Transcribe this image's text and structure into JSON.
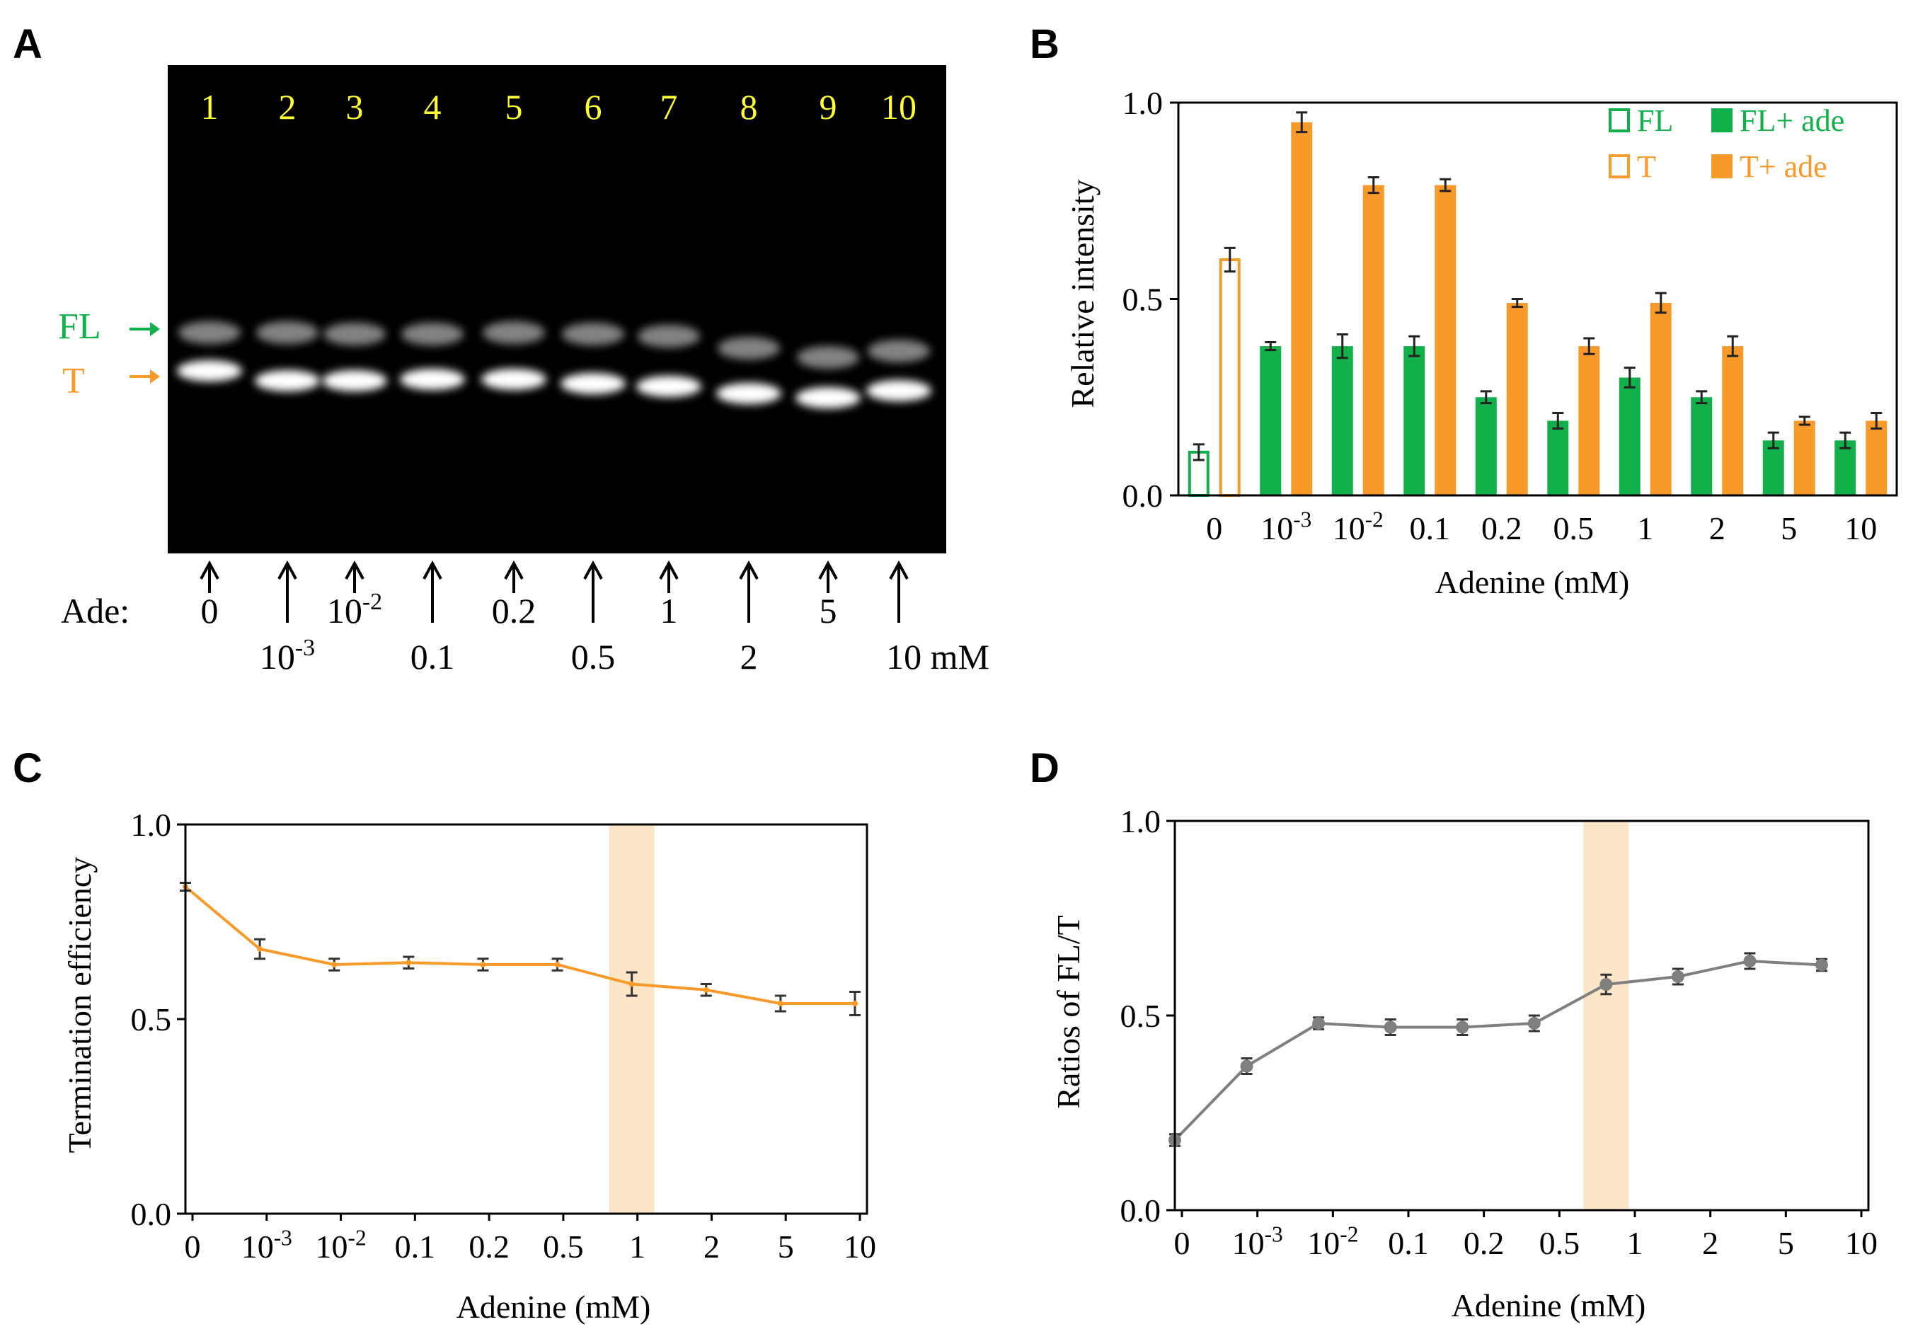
{
  "panel_labels": {
    "a": "A",
    "b": "B",
    "c": "C",
    "d": "D"
  },
  "colors": {
    "green": "#12b04a",
    "orange": "#f89a2a",
    "gray": "#7f7f7f",
    "highlight": "#fde5c8",
    "lane_number": "#ffff33",
    "gel_bg": "#000000"
  },
  "gel": {
    "lane_numbers": [
      "1",
      "2",
      "3",
      "4",
      "5",
      "6",
      "7",
      "8",
      "9",
      "10"
    ],
    "fl_label": "FL",
    "t_label": "T",
    "ade_prefix": "Ade:",
    "lanes": [
      {
        "base": "0",
        "exp": ""
      },
      {
        "base": "10",
        "exp": "-3"
      },
      {
        "base": "10",
        "exp": "-2"
      },
      {
        "base": "0.1",
        "exp": ""
      },
      {
        "base": "0.2",
        "exp": ""
      },
      {
        "base": "0.5",
        "exp": ""
      },
      {
        "base": "1",
        "exp": ""
      },
      {
        "base": "2",
        "exp": ""
      },
      {
        "base": "5",
        "exp": ""
      },
      {
        "base": "10 mM",
        "exp": ""
      }
    ]
  },
  "chart_data": [
    {
      "id": "B",
      "type": "bar",
      "title": "",
      "xlabel": "Adenine (mM)",
      "ylabel": "Relative intensity",
      "ylim": [
        0,
        1.0
      ],
      "yticks": [
        "0.0",
        "0.5",
        "1.0"
      ],
      "categories": [
        {
          "base": "0",
          "exp": ""
        },
        {
          "base": "10",
          "exp": "-3"
        },
        {
          "base": "10",
          "exp": "-2"
        },
        {
          "base": "0.1",
          "exp": ""
        },
        {
          "base": "0.2",
          "exp": ""
        },
        {
          "base": "0.5",
          "exp": ""
        },
        {
          "base": "1",
          "exp": ""
        },
        {
          "base": "2",
          "exp": ""
        },
        {
          "base": "5",
          "exp": ""
        },
        {
          "base": "10",
          "exp": ""
        }
      ],
      "legend": [
        "FL",
        "FL+ ade",
        "T",
        "T+ ade"
      ],
      "series": [
        {
          "name": "FL",
          "values": [
            0.11,
            0.38,
            0.38,
            0.38,
            0.25,
            0.19,
            0.3,
            0.25,
            0.14,
            0.14
          ],
          "errors": [
            0.02,
            0.01,
            0.03,
            0.025,
            0.015,
            0.02,
            0.025,
            0.015,
            0.02,
            0.02
          ]
        },
        {
          "name": "T",
          "values": [
            0.6,
            0.95,
            0.79,
            0.79,
            0.49,
            0.38,
            0.49,
            0.38,
            0.19,
            0.19
          ],
          "errors": [
            0.03,
            0.025,
            0.02,
            0.015,
            0.01,
            0.02,
            0.025,
            0.025,
            0.01,
            0.02
          ]
        }
      ]
    },
    {
      "id": "C",
      "type": "line",
      "title": "",
      "xlabel": "Adenine (mM)",
      "ylabel": "Termination efficiency",
      "ylim": [
        0,
        1.0
      ],
      "yticks": [
        "0.0",
        "0.5",
        "1.0"
      ],
      "categories": [
        {
          "base": "0",
          "exp": ""
        },
        {
          "base": "10",
          "exp": "-3"
        },
        {
          "base": "10",
          "exp": "-2"
        },
        {
          "base": "0.1",
          "exp": ""
        },
        {
          "base": "0.2",
          "exp": ""
        },
        {
          "base": "0.5",
          "exp": ""
        },
        {
          "base": "1",
          "exp": ""
        },
        {
          "base": "2",
          "exp": ""
        },
        {
          "base": "5",
          "exp": ""
        },
        {
          "base": "10",
          "exp": ""
        }
      ],
      "highlight_category": 6,
      "series": [
        {
          "name": "Termination efficiency",
          "values": [
            0.84,
            0.68,
            0.64,
            0.645,
            0.64,
            0.64,
            0.59,
            0.575,
            0.54,
            0.54
          ],
          "errors": [
            0.01,
            0.025,
            0.015,
            0.015,
            0.015,
            0.015,
            0.03,
            0.015,
            0.02,
            0.03
          ]
        }
      ]
    },
    {
      "id": "D",
      "type": "line",
      "title": "",
      "xlabel": "Adenine (mM)",
      "ylabel": "Ratios of FL/T",
      "ylim": [
        0,
        1.0
      ],
      "yticks": [
        "0.0",
        "0.5",
        "1.0"
      ],
      "categories": [
        {
          "base": "0",
          "exp": ""
        },
        {
          "base": "10",
          "exp": "-3"
        },
        {
          "base": "10",
          "exp": "-2"
        },
        {
          "base": "0.1",
          "exp": ""
        },
        {
          "base": "0.2",
          "exp": ""
        },
        {
          "base": "0.5",
          "exp": ""
        },
        {
          "base": "1",
          "exp": ""
        },
        {
          "base": "2",
          "exp": ""
        },
        {
          "base": "5",
          "exp": ""
        },
        {
          "base": "10",
          "exp": ""
        }
      ],
      "highlight_category": 6,
      "series": [
        {
          "name": "Ratios of FL/T",
          "values": [
            0.18,
            0.37,
            0.48,
            0.47,
            0.47,
            0.48,
            0.58,
            0.6,
            0.64,
            0.63
          ],
          "errors": [
            0.015,
            0.02,
            0.015,
            0.02,
            0.02,
            0.02,
            0.025,
            0.02,
            0.02,
            0.015
          ]
        }
      ]
    }
  ]
}
